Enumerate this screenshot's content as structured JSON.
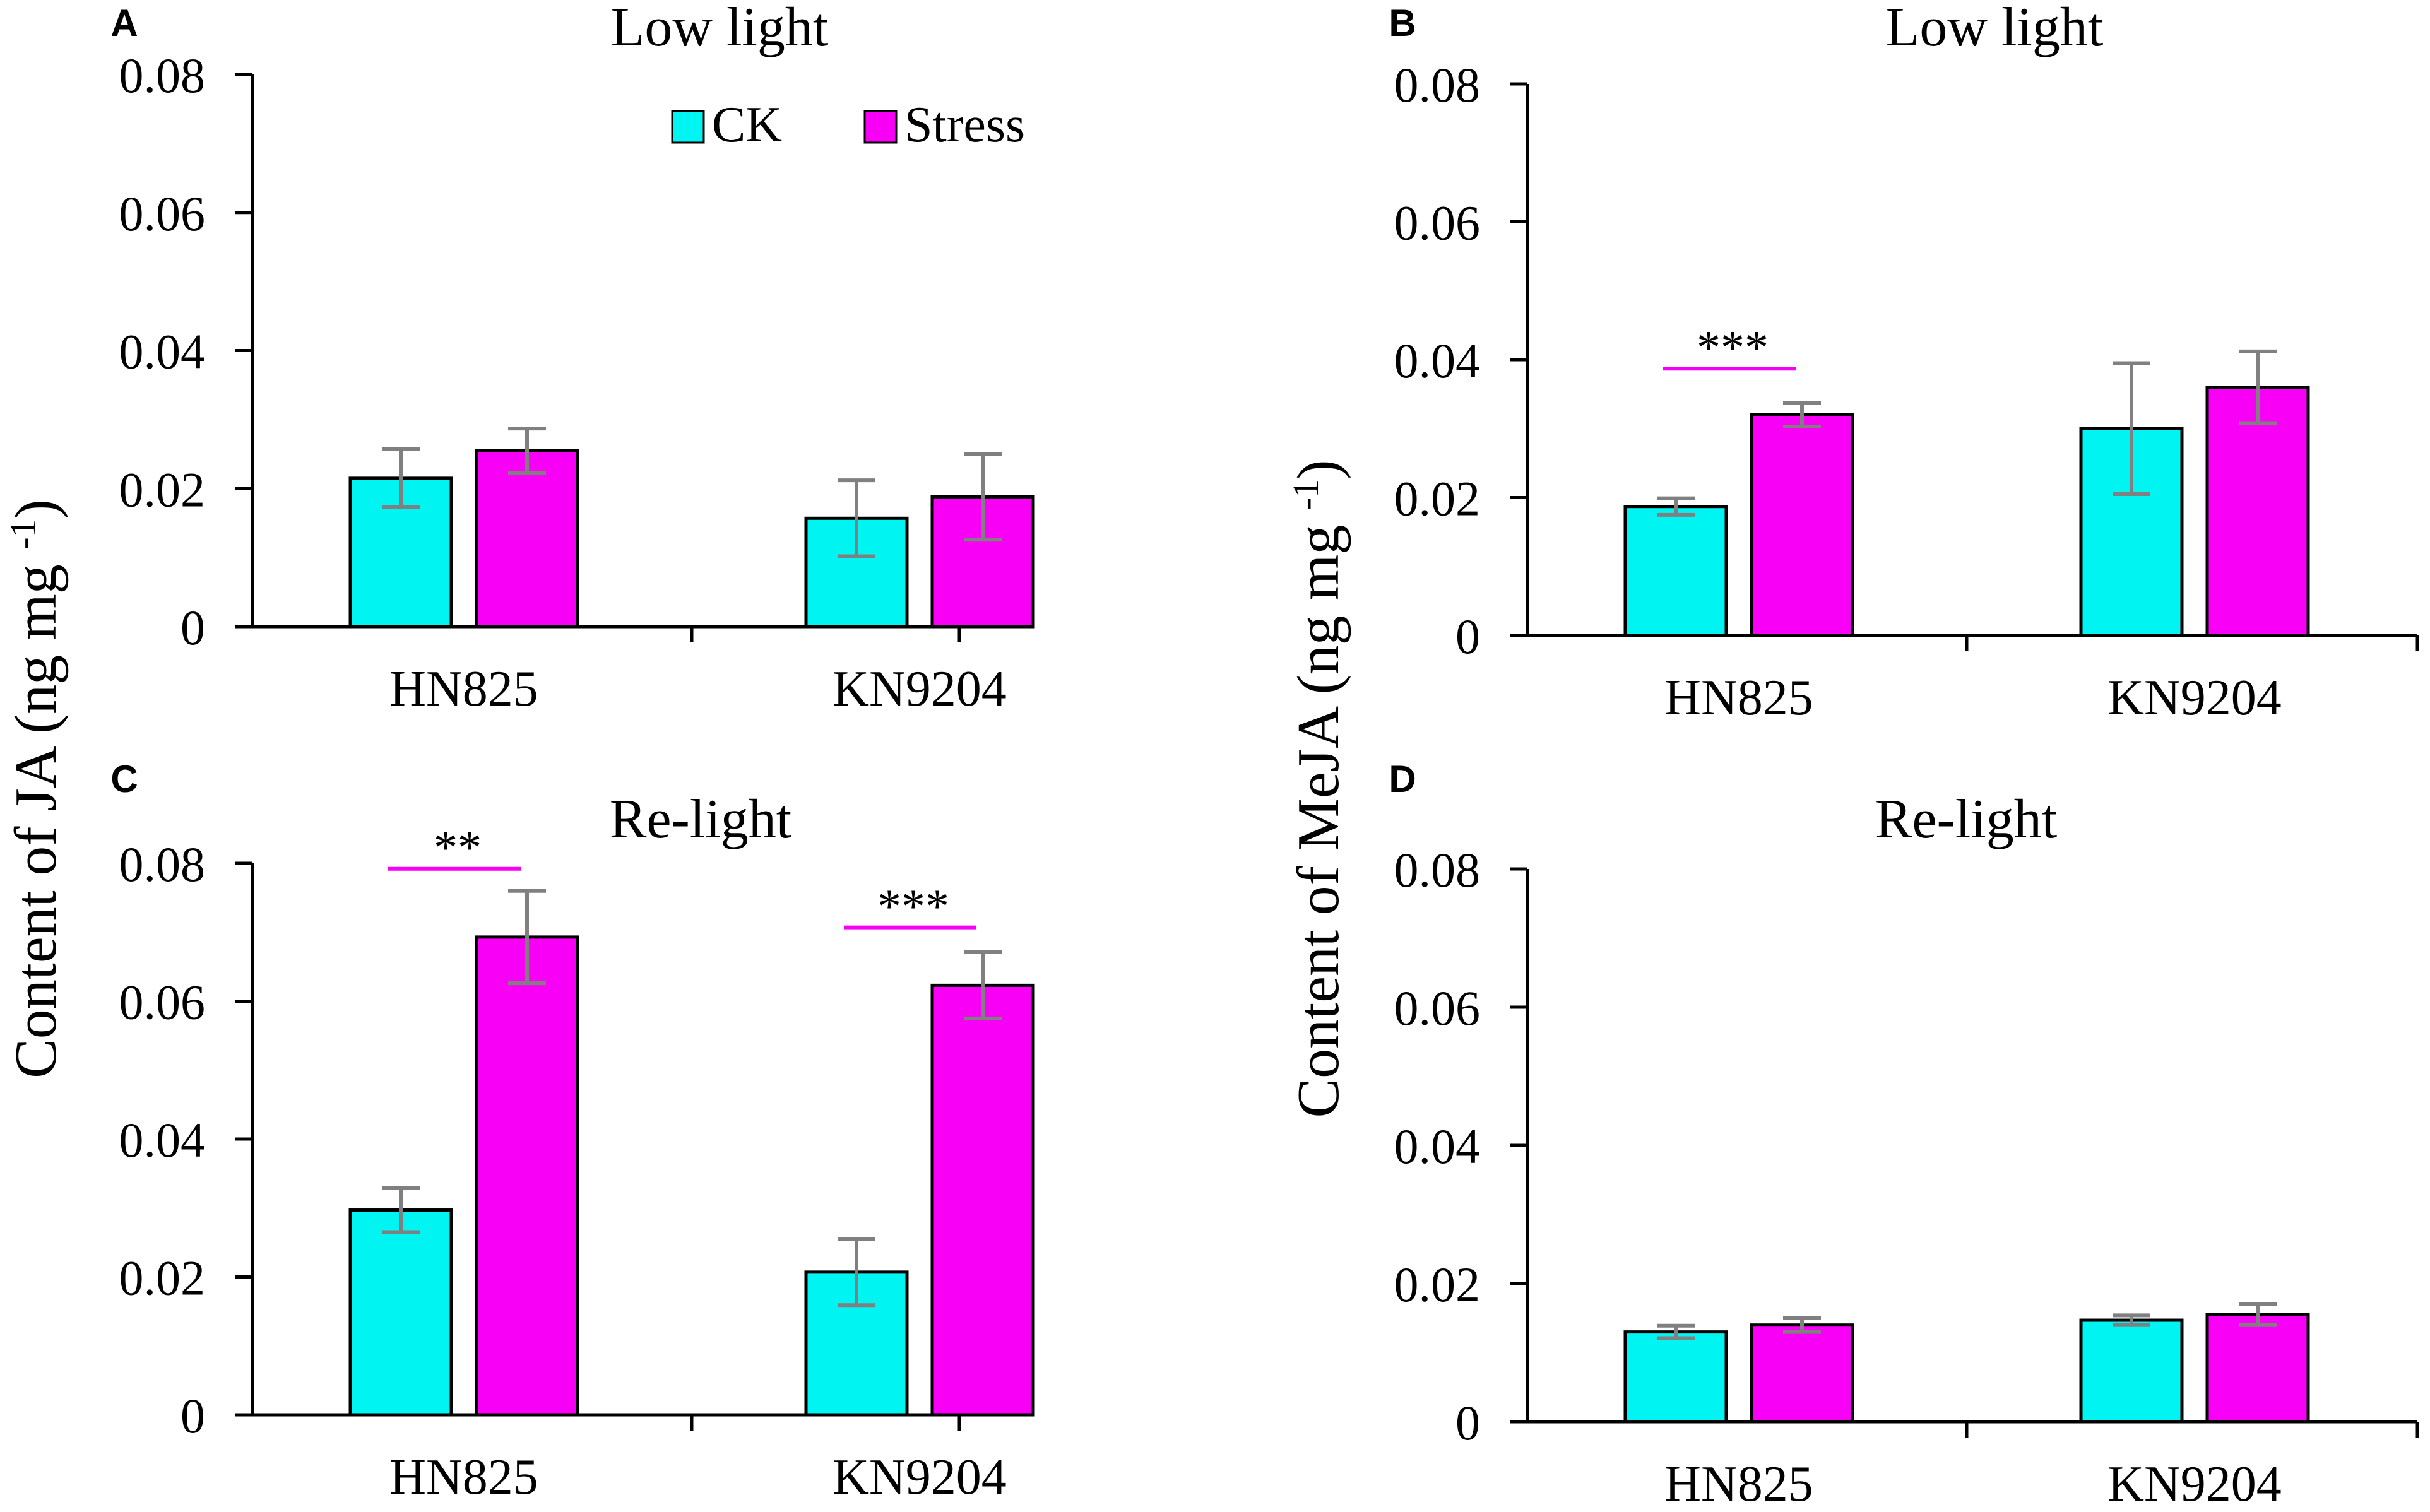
{
  "figure": {
    "legend": {
      "ck_label": "CK",
      "stress_label": "Stress"
    },
    "colors": {
      "ck": "#00F5F2",
      "stress": "#F700F5",
      "error_bar": "#808080",
      "sig_line": "#F700F5",
      "axis": "#000000"
    },
    "y_axis_titles": {
      "left": "Content of JA (ng mg-1)",
      "right": "Content of MeJA (ng mg-1)"
    }
  },
  "chart_data": [
    {
      "type": "bar",
      "panel": "A",
      "title": "Low light",
      "ylabel": "Content of JA (ng mg-1)",
      "categories": [
        "HN825",
        "KN9204"
      ],
      "ylim": [
        0,
        0.08
      ],
      "yticks": [
        "0",
        "0.02",
        "0.04",
        "0.06",
        "0.08"
      ],
      "series": [
        {
          "name": "CK",
          "values": [
            0.0215,
            0.0157
          ],
          "errors": [
            0.0042,
            0.0055
          ]
        },
        {
          "name": "Stress",
          "values": [
            0.0255,
            0.0188
          ],
          "errors": [
            0.0032,
            0.0062
          ]
        }
      ],
      "significance": [],
      "legend": "top-center"
    },
    {
      "type": "bar",
      "panel": "B",
      "title": "Low light",
      "ylabel": "Content of MeJA (ng mg-1)",
      "categories": [
        "HN825",
        "KN9204"
      ],
      "ylim": [
        0,
        0.08
      ],
      "yticks": [
        "0",
        "0.02",
        "0.04",
        "0.06",
        "0.08"
      ],
      "series": [
        {
          "name": "CK",
          "values": [
            0.0187,
            0.03
          ],
          "errors": [
            0.0012,
            0.0095
          ]
        },
        {
          "name": "Stress",
          "values": [
            0.032,
            0.036
          ],
          "errors": [
            0.0017,
            0.0052
          ]
        }
      ],
      "significance": [
        {
          "category": "HN825",
          "label": "***",
          "y": 0.0387
        }
      ]
    },
    {
      "type": "bar",
      "panel": "C",
      "title": "Re-light",
      "ylabel": "Content of JA (ng mg-1)",
      "categories": [
        "HN825",
        "KN9204"
      ],
      "ylim": [
        0,
        0.08
      ],
      "yticks": [
        "0",
        "0.02",
        "0.04",
        "0.06",
        "0.08"
      ],
      "series": [
        {
          "name": "CK",
          "values": [
            0.0297,
            0.0207
          ],
          "errors": [
            0.0032,
            0.0048
          ]
        },
        {
          "name": "Stress",
          "values": [
            0.0693,
            0.0623
          ],
          "errors": [
            0.0067,
            0.0048
          ]
        }
      ],
      "significance": [
        {
          "category": "HN825",
          "label": "**",
          "y": 0.0792
        },
        {
          "category": "KN9204",
          "label": "***",
          "y": 0.0707
        }
      ]
    },
    {
      "type": "bar",
      "panel": "D",
      "title": "Re-light",
      "ylabel": "Content of MeJA (ng mg-1)",
      "categories": [
        "HN825",
        "KN9204"
      ],
      "ylim": [
        0,
        0.08
      ],
      "yticks": [
        "0",
        "0.02",
        "0.04",
        "0.06",
        "0.08"
      ],
      "series": [
        {
          "name": "CK",
          "values": [
            0.013,
            0.0147
          ],
          "errors": [
            0.0009,
            0.0007
          ]
        },
        {
          "name": "Stress",
          "values": [
            0.014,
            0.0155
          ],
          "errors": [
            0.001,
            0.0015
          ]
        }
      ],
      "significance": []
    }
  ]
}
